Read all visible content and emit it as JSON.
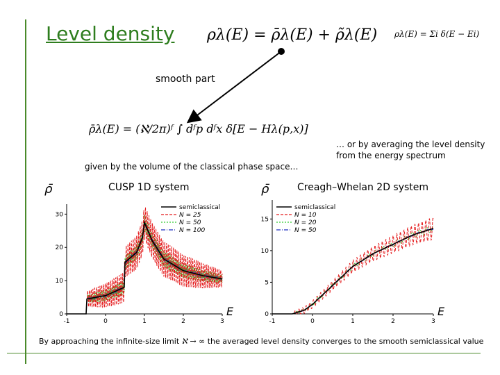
{
  "title": "Level density",
  "eq_main": "ρλ(E) = ρ̄λ(E) + ρ̃λ(E)",
  "eq_sum": "ρλ(E) = Σi δ(E − Ei)",
  "smooth_label": "smooth part",
  "eq_smooth": "ρ̄λ(E) = (ℵ/2π)ᶠ ∫ dᶠp dᶠx δ[E − Hλ(p,x)]",
  "given_label": "given by the volume of the classical phase space…",
  "avg_label": "… or by averaging the level density from the energy spectrum",
  "bottom_prefix": "By approaching the infinite-size limit",
  "bottom_math": "ℵ → ∞",
  "bottom_suffix": "the averaged level density converges to the smooth semiclassical value",
  "colors": {
    "accent": "#2e7d1e",
    "semiclassical": "#000000",
    "series1": "#e41a1c",
    "series2": "#33cc33",
    "series3": "#1f2fbf"
  },
  "chart_data": [
    {
      "type": "line",
      "title": "CUSP 1D system",
      "ylabel": "ρ̄",
      "xlabel": "E",
      "xlim": [
        -1,
        3
      ],
      "ylim": [
        0,
        33
      ],
      "xticks": [
        "-1",
        "0",
        "1",
        "2",
        "3"
      ],
      "yticks": [
        "0",
        "10",
        "20",
        "30"
      ],
      "legend": [
        "semiclassical",
        "N = 25",
        "N = 50",
        "N = 100"
      ],
      "legend_position": "top-right",
      "series": [
        {
          "name": "semiclassical",
          "x": [
            -1,
            -0.5,
            -0.48,
            0,
            0.48,
            0.5,
            0.8,
            0.95,
            1.0,
            1.2,
            1.5,
            2.0,
            2.5,
            3.0
          ],
          "y": [
            0,
            0,
            4.5,
            5.5,
            8.0,
            15.5,
            18.5,
            23.0,
            27.5,
            22.0,
            16.5,
            13.0,
            11.5,
            10.5
          ]
        },
        {
          "name": "N = 25",
          "osc": {
            "x0": -0.47,
            "x1": 3.0,
            "amp": [
              4,
              9
            ],
            "period": 0.045
          }
        },
        {
          "name": "N = 50",
          "osc": {
            "x0": -0.47,
            "x1": 3.0,
            "amp": [
              2,
              4
            ],
            "period": 0.03
          }
        },
        {
          "name": "N = 100",
          "osc": {
            "x0": -0.47,
            "x1": 3.0,
            "amp": [
              1,
              1.5
            ],
            "period": 0.02
          }
        }
      ]
    },
    {
      "type": "line",
      "title": "Creagh–Whelan 2D system",
      "ylabel": "ρ̄",
      "xlabel": "E",
      "xlim": [
        -1,
        3
      ],
      "ylim": [
        0,
        18
      ],
      "xticks": [
        "-1",
        "0",
        "1",
        "2",
        "3"
      ],
      "yticks": [
        "0",
        "5",
        "10",
        "15"
      ],
      "legend": [
        "semiclassical",
        "N = 10",
        "N = 20",
        "N = 50"
      ],
      "legend_position": "top-left",
      "series": [
        {
          "name": "semiclassical",
          "x": [
            -1,
            -0.5,
            -0.2,
            0,
            0.5,
            1.0,
            1.5,
            2.0,
            2.5,
            3.0
          ],
          "y": [
            0,
            0,
            0.6,
            1.5,
            4.5,
            7.5,
            9.5,
            11.0,
            12.5,
            13.5
          ]
        },
        {
          "name": "N = 10",
          "osc": {
            "x0": -0.45,
            "x1": 3.0,
            "amp": [
              0.8,
              3.5
            ],
            "period": 0.09
          }
        },
        {
          "name": "N = 20",
          "osc": {
            "x0": -0.45,
            "x1": 3.0,
            "amp": [
              0.4,
              1.0
            ],
            "period": 0.18
          }
        },
        {
          "name": "N = 50",
          "osc": {
            "x0": -0.45,
            "x1": 3.0,
            "amp": [
              0.1,
              0.3
            ],
            "period": 0.25
          }
        }
      ]
    }
  ]
}
